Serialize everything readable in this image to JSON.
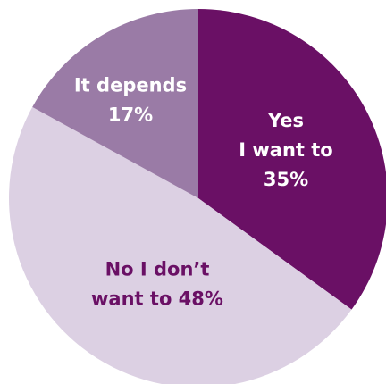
{
  "chart_data": {
    "type": "pie",
    "title": "",
    "start_angle_deg": 0,
    "direction": "clockwise",
    "slices": [
      {
        "label_lines": [
          "Yes",
          "I want to",
          "35%"
        ],
        "value": 35,
        "color": "#6a1065",
        "label_color": "#ffffff"
      },
      {
        "label_lines": [
          "No I don’t",
          "want to 48%"
        ],
        "value": 48,
        "color": "#dcd0e3",
        "label_color": "#6a1065"
      },
      {
        "label_lines": [
          "It depends",
          "17%"
        ],
        "value": 17,
        "color": "#9a7ba6",
        "label_color": "#ffffff"
      }
    ]
  }
}
